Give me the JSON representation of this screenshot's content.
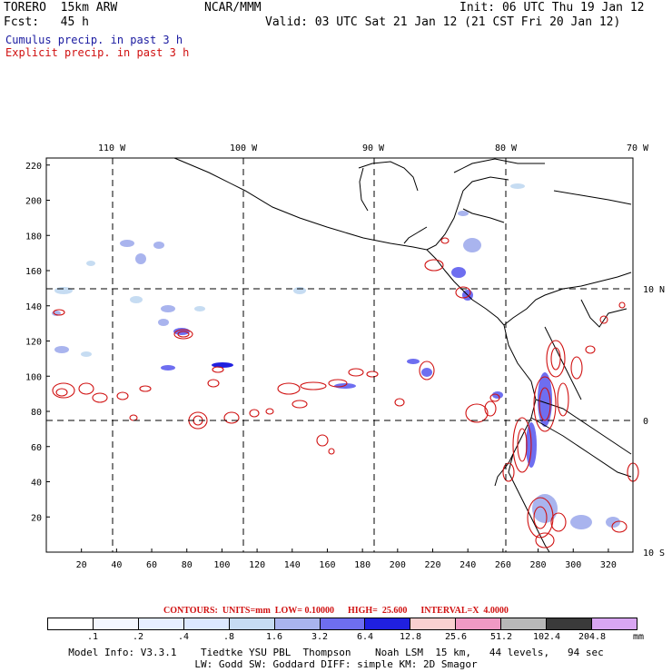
{
  "header": {
    "line1_left": "TORERO  15km ARW",
    "line1_center": "NCAR/MMM",
    "line1_right": "Init: 06 UTC Thu 19 Jan 12",
    "line2_left": "Fcst:   45 h",
    "line2_right": "Valid: 03 UTC Sat 21 Jan 12 (21 CST Fri 20 Jan 12)",
    "field1": "Cumulus precip. in past 3 h",
    "field2": "Explicit precip. in past 3 h"
  },
  "map": {
    "lon_labels": [
      "110 W",
      "100 W",
      "90 W",
      "80 W",
      "70 W"
    ],
    "lat_labels": [
      "10 N",
      "0",
      "10 S"
    ],
    "x_ticks": [
      "20",
      "40",
      "60",
      "80",
      "100",
      "120",
      "140",
      "160",
      "180",
      "200",
      "220",
      "240",
      "260",
      "280",
      "300",
      "320"
    ],
    "y_ticks": [
      "20",
      "40",
      "60",
      "80",
      "100",
      "120",
      "140",
      "160",
      "180",
      "200",
      "220"
    ]
  },
  "contour_info": "CONTOURS:  UNITS=mm  LOW= 0.10000      HIGH=  25.600      INTERVAL=X  4.0000",
  "legend": {
    "colors": [
      "#ffffff",
      "#f4f7ff",
      "#e6eeff",
      "#dce8ff",
      "#c6dcf2",
      "#a9b4ee",
      "#6e6ef0",
      "#2020e0",
      "#f9d0d0",
      "#f099c4",
      "#b8b8b8",
      "#3a3a3a",
      "#d9a6f2"
    ],
    "labels": [
      ".1",
      ".2",
      ".4",
      ".8",
      "1.6",
      "3.2",
      "6.4",
      "12.8",
      "25.6",
      "51.2",
      "102.4",
      "204.8"
    ],
    "units": "mm"
  },
  "model_info": {
    "line1": "Model Info: V3.3.1    Tiedtke YSU PBL  Thompson    Noah LSM  15 km,   44 levels,   94 sec",
    "line2": "LW: Godd SW: Goddard DIFF: simple KM: 2D Smagor"
  }
}
